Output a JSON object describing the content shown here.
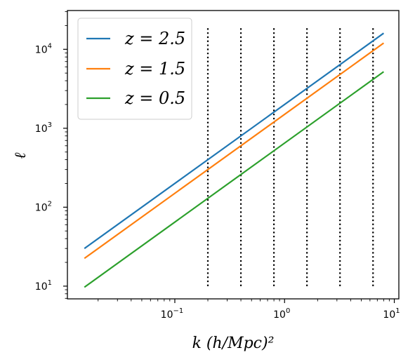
{
  "chart_data": {
    "type": "line",
    "xlabel": "k (h/Mpc)²",
    "ylabel": "ℓ",
    "xscale": "log",
    "yscale": "log",
    "xlim": [
      0.0105,
      11.0
    ],
    "ylim": [
      6.9,
      31000
    ],
    "grid": false,
    "legend_position": "top-left",
    "x_ticks": [
      {
        "value": 0.1,
        "base": "10",
        "exp": "−1"
      },
      {
        "value": 1,
        "base": "10",
        "exp": "0"
      },
      {
        "value": 10,
        "base": "10",
        "exp": "1"
      }
    ],
    "y_ticks": [
      {
        "value": 10,
        "base": "10",
        "exp": "1"
      },
      {
        "value": 100,
        "base": "10",
        "exp": "2"
      },
      {
        "value": 1000,
        "base": "10",
        "exp": "3"
      },
      {
        "value": 10000,
        "base": "10",
        "exp": "4"
      }
    ],
    "series": [
      {
        "name": "z = 2.5",
        "color": "#1f77b4",
        "x": [
          0.015,
          8.0
        ],
        "y": [
          30,
          16000
        ]
      },
      {
        "name": "z = 1.5",
        "color": "#ff7f0e",
        "x": [
          0.015,
          8.0
        ],
        "y": [
          22.5,
          12000
        ]
      },
      {
        "name": "z = 0.5",
        "color": "#2ca02c",
        "x": [
          0.015,
          8.0
        ],
        "y": [
          9.7,
          5200
        ]
      }
    ],
    "vlines": {
      "style": "dotted",
      "color": "#000000",
      "y_range": [
        10,
        19000
      ],
      "x": [
        0.2,
        0.4,
        0.8,
        1.6,
        3.2,
        6.4
      ]
    }
  }
}
